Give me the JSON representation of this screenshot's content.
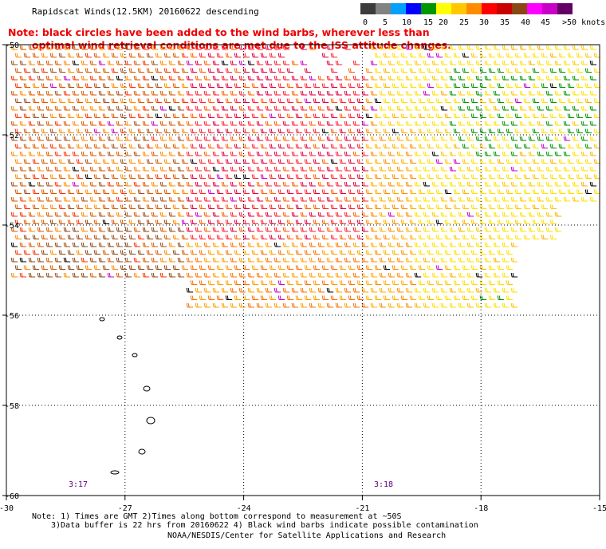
{
  "title": "Rapidscat Winds(12.5KM) 20160622 descending",
  "note": {
    "line1": "Note: black circles have been added to the wind barbs, wherever less than",
    "line2": "optimal wind retrieval conditions are met due to the ISS attitude changes."
  },
  "legend": {
    "labels": [
      "0",
      "5",
      "10",
      "15",
      "20",
      "25",
      "30",
      "35",
      "40",
      "45",
      ">50 knots"
    ],
    "colors": [
      "#3c3c3c",
      "#828282",
      "#00a0ff",
      "#0000ff",
      "#009600",
      "#ffff00",
      "#ffc800",
      "#ff8c00",
      "#ff0000",
      "#c80000",
      "#8c4614",
      "#ff00ff",
      "#c800c8",
      "#640064"
    ]
  },
  "map": {
    "lon_labels": [
      "-30",
      "-27",
      "-24",
      "-21",
      "-18",
      "-15"
    ],
    "lat_labels": [
      "-50",
      "-52",
      "-54",
      "-56",
      "-58",
      "-60"
    ],
    "times": [
      "3:17",
      "3:18"
    ]
  },
  "footer": {
    "line1": "Note: 1) Times are GMT 2)Times along bottom correspond to measurement at ~50S",
    "line2": "3)Data buffer is 22 hrs from 20160622 4) Black wind barbs indicate possible contamination",
    "line3": "NOAA/NESDIS/Center for Satellite Applications and Research"
  }
}
